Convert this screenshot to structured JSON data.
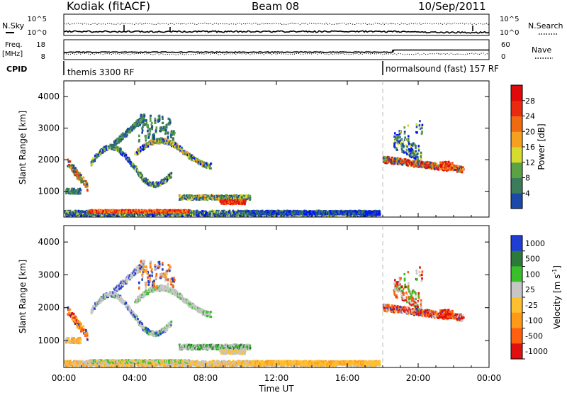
{
  "header": {
    "station": "Kodiak (fitACF)",
    "beam": "Beam 08",
    "date": "10/Sep/2011"
  },
  "labels": {
    "nsky": "N.Sky",
    "nsearch": "N.Search",
    "freq": "Freq.",
    "mhz": "[MHz]",
    "nave": "Nave",
    "cpid": "CPID",
    "yrange": "Slant Range [km]",
    "power_label": "Power [dB]",
    "velocity_label": "Velocity [m s",
    "velocity_exp": "-1",
    "velocity_close": "]",
    "xlabel": "Time UT"
  },
  "cpid": [
    {
      "text": "themis 3300 RF",
      "start_hour": 0
    },
    {
      "text": "normalsound (fast) 157 RF",
      "start_hour": 18
    }
  ],
  "colors": {
    "power": [
      "#0010ff",
      "#1c48a8",
      "#3a7c5c",
      "#5aa244",
      "#d6dc2e",
      "#f5a020",
      "#f06a12",
      "#ea2a10",
      "#e00a0a"
    ],
    "velocity": [
      "#1f3ed6",
      "#2b7a3a",
      "#39bf2a",
      "#c6c6c6",
      "#ffc030",
      "#ff9a18",
      "#ff6010",
      "#e01010"
    ]
  },
  "chart_data": {
    "type": "heatmap",
    "time_axis": {
      "ticks": [
        "00:00",
        "04:00",
        "08:00",
        "12:00",
        "16:00",
        "20:00",
        "00:00"
      ],
      "range_hours": [
        0,
        24
      ]
    },
    "noise_panel": {
      "left_ticks": [
        "10^5",
        "10^0"
      ],
      "right_ticks": [
        "10^5",
        "10^0"
      ]
    },
    "freq_panel": {
      "left_ticks": [
        "18",
        "8"
      ],
      "right_ticks": [
        "60",
        "0"
      ]
    },
    "range_axis": {
      "ticks": [
        1000,
        2000,
        3000,
        4000
      ],
      "ylim": [
        180,
        4500
      ]
    },
    "power": {
      "label": "Power [dB]",
      "colorbar_ticks": [
        4,
        8,
        12,
        16,
        20,
        24,
        28
      ]
    },
    "velocity": {
      "label": "Velocity [m s-1]",
      "colorbar_ticks": [
        1000,
        500,
        100,
        25,
        -25,
        -100,
        -500,
        -1000
      ]
    },
    "echo_regions": [
      {
        "name": "ground",
        "hour_range": [
          0.0,
          17.8
        ],
        "range_km": [
          200,
          480
        ]
      },
      {
        "name": "e-region",
        "hour_range": [
          0.2,
          1.3
        ],
        "range_km": [
          700,
          2100
        ]
      },
      {
        "name": "f-region-arc-1",
        "hour_range": [
          1.5,
          6.0
        ],
        "range_km": [
          1200,
          3400
        ]
      },
      {
        "name": "f-region-arc-2",
        "hour_range": [
          4.0,
          8.3
        ],
        "range_km": [
          1900,
          3000
        ]
      },
      {
        "name": "mid-band",
        "hour_range": [
          6.5,
          10.5
        ],
        "range_km": [
          550,
          1000
        ]
      },
      {
        "name": "evening-echoes",
        "hour_range": [
          18.0,
          22.5
        ],
        "range_km": [
          1600,
          3500
        ]
      }
    ]
  }
}
